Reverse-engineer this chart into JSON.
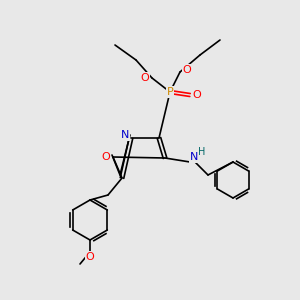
{
  "background_color": "#e8e8e8",
  "colors": {
    "C": "#000000",
    "N": "#0000cc",
    "O": "#ff0000",
    "P": "#cc8800",
    "H": "#006666",
    "bond": "#000000"
  },
  "font_size": 7,
  "lw": 1.2
}
